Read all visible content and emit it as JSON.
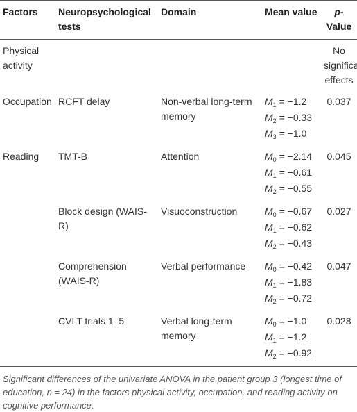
{
  "table": {
    "header": [
      "Factors",
      "Neuropsychological tests",
      "Domain",
      "Mean value",
      {
        "italic": "p",
        "rest": "-Value"
      }
    ],
    "rows": [
      {
        "factor": "Physical activity",
        "p": "No significant effects"
      },
      {
        "factor": "Occupation",
        "test": "RCFT delay",
        "domain": "Non-verbal long-term memory",
        "means": [
          {
            "symbol": "M",
            "sub": "1",
            "rest": " = −1.2"
          },
          {
            "symbol": "M",
            "sub": "2",
            "rest": " = −0.33"
          },
          {
            "symbol": "M",
            "sub": "3",
            "rest": " = −1.0"
          }
        ],
        "p": "0.037"
      },
      {
        "factor": "Reading",
        "test": "TMT-B",
        "domain": "Attention",
        "means": [
          {
            "symbol": "M",
            "sub": "0",
            "rest": " = −2.14"
          },
          {
            "symbol": "M",
            "sub": "1",
            "rest": " = −0.61"
          },
          {
            "symbol": "M",
            "sub": "2",
            "rest": " = −0.55"
          }
        ],
        "p": "0.045"
      },
      {
        "test": "Block design (WAIS-R)",
        "domain": "Visuoconstruction",
        "means": [
          {
            "symbol": "M",
            "sub": "0",
            "rest": " = −0.67"
          },
          {
            "symbol": "M",
            "sub": "1",
            "rest": " = −0.62"
          },
          {
            "symbol": "M",
            "sub": "2",
            "rest": " = −0.43"
          }
        ],
        "p": "0.027"
      },
      {
        "test": "Comprehension (WAIS-R)",
        "domain": "Verbal performance",
        "means": [
          {
            "symbol": "M",
            "sub": "0",
            "rest": " = −0.42"
          },
          {
            "symbol": "M",
            "sub": "1",
            "rest": " = −1.83"
          },
          {
            "symbol": "M",
            "sub": "2",
            "rest": " = −0.72"
          }
        ],
        "p": "0.047"
      },
      {
        "test": "CVLT trials 1–5",
        "domain": "Verbal long-term memory",
        "means": [
          {
            "symbol": "M",
            "sub": "0",
            "rest": " = −1.0"
          },
          {
            "symbol": "M",
            "sub": "1",
            "rest": " = −1.2"
          },
          {
            "symbol": "M",
            "sub": "2",
            "rest": " = −0.92"
          }
        ],
        "p": "0.028"
      }
    ],
    "caption": "Significant differences of the univariate ANOVA in the patient group 3 (longest time of education, n = 24) in the factors physical activity, occupation, and reading activity on cognitive performance."
  }
}
